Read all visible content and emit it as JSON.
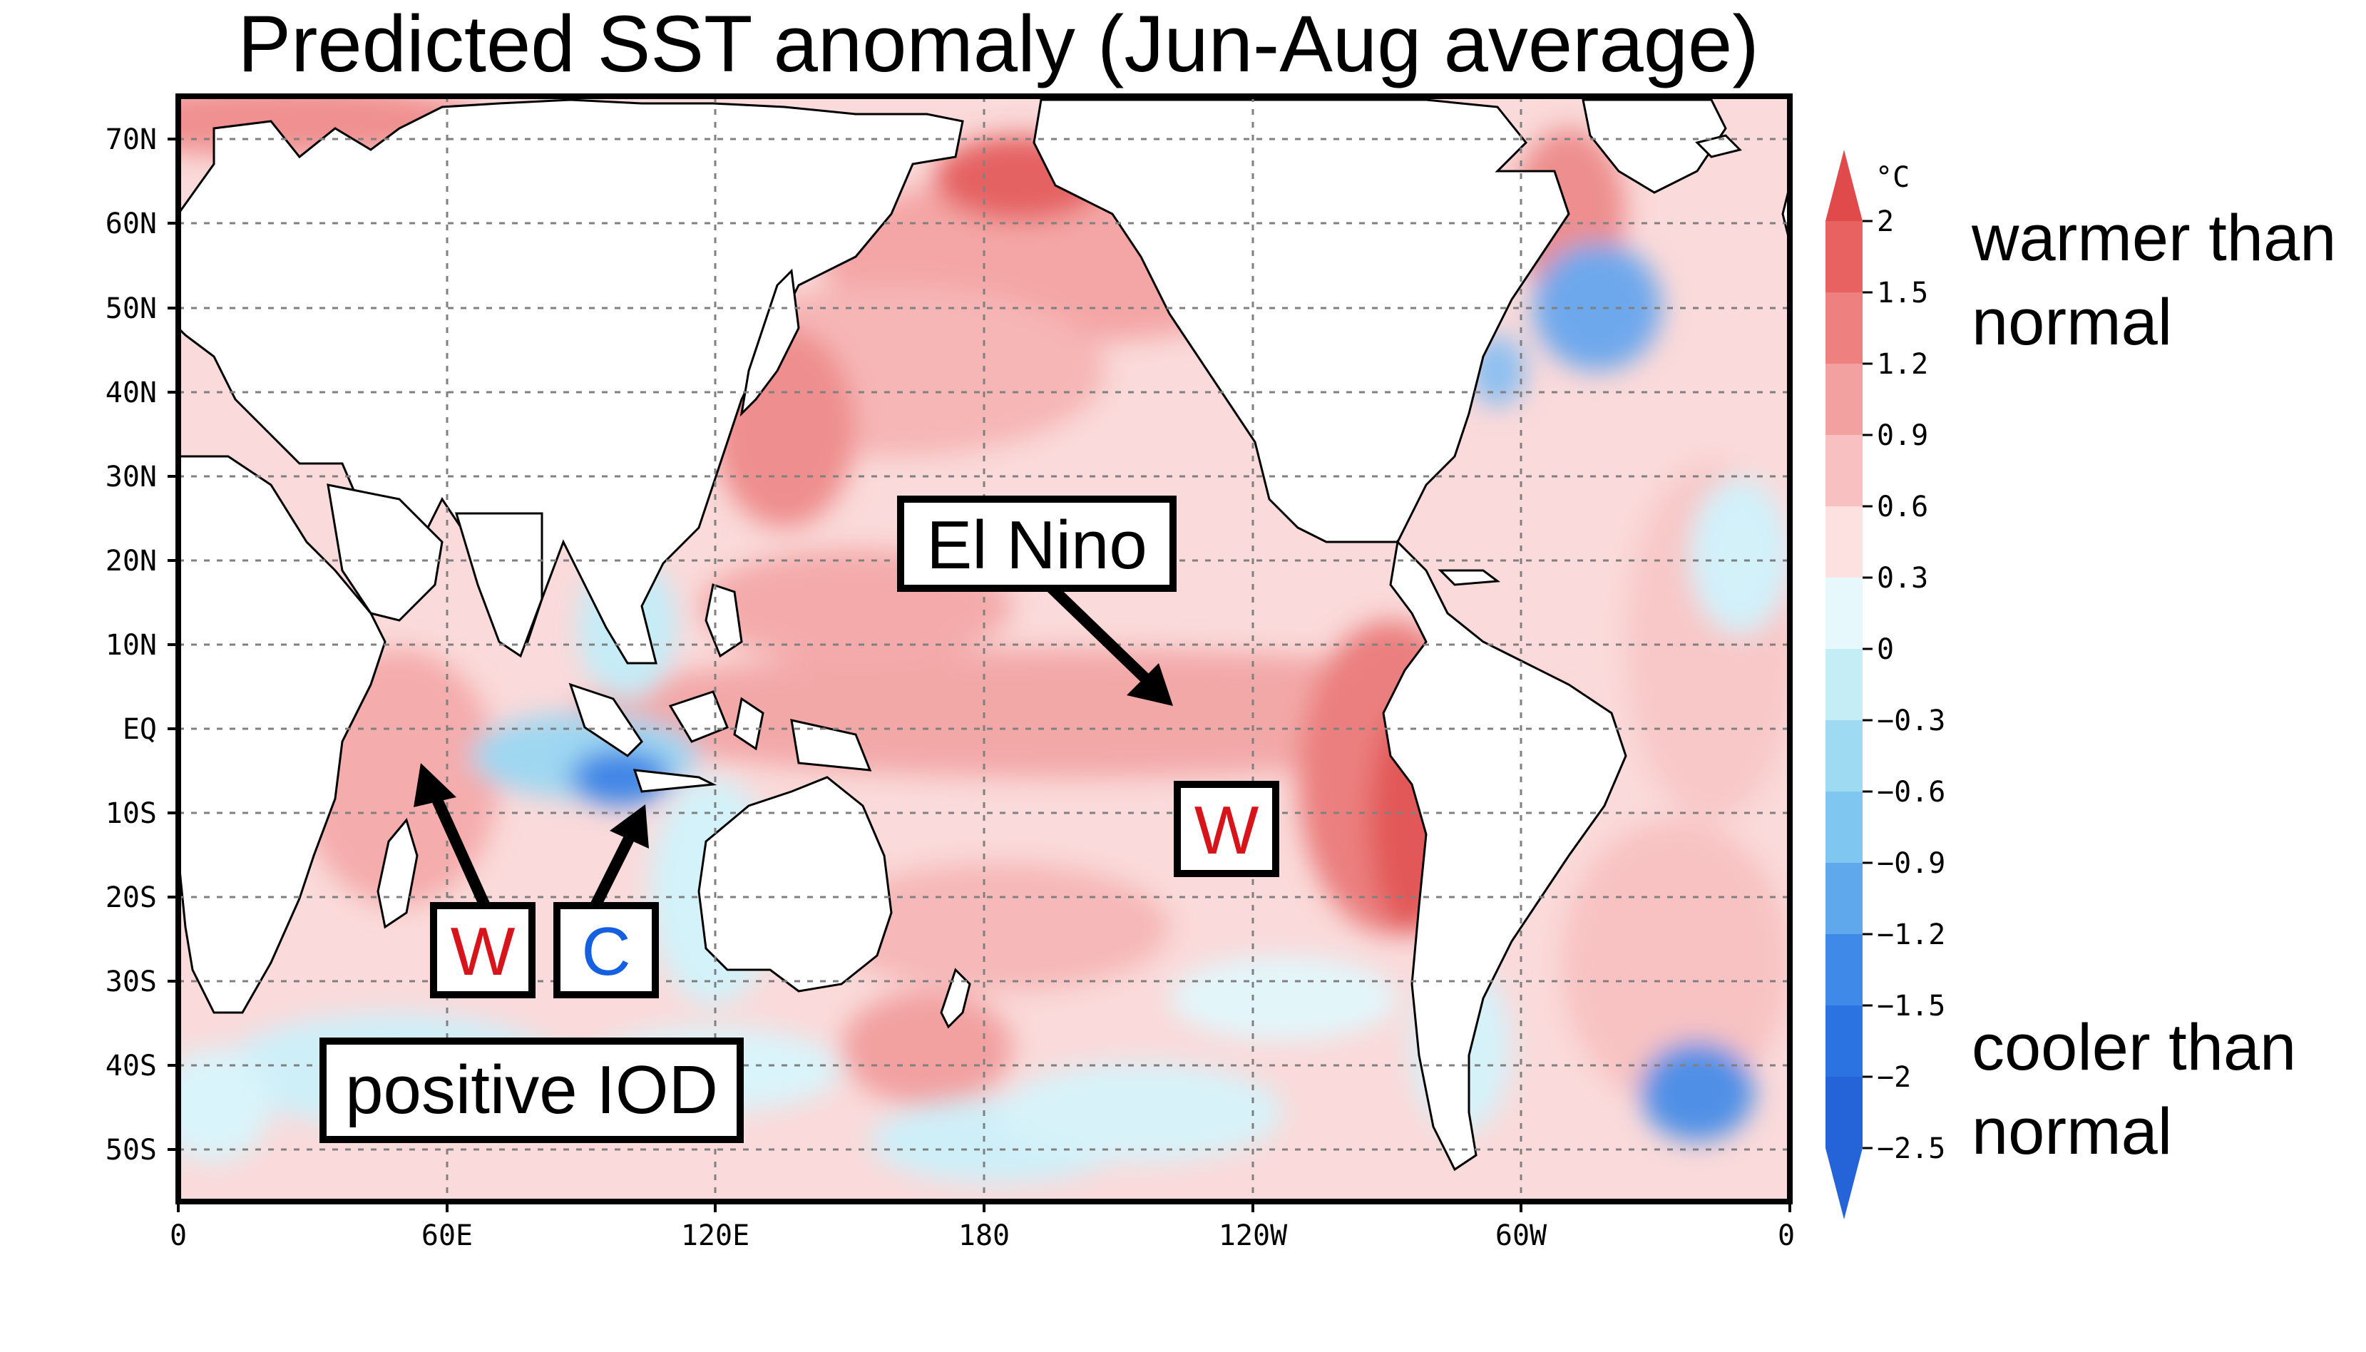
{
  "title": "Predicted SST anomaly (Jun-Aug average)",
  "map": {
    "lat_labels": [
      "70N",
      "60N",
      "50N",
      "40N",
      "30N",
      "20N",
      "10N",
      "EQ",
      "10S",
      "20S",
      "30S",
      "40S",
      "50S"
    ],
    "lon_labels": [
      "0",
      "60E",
      "120E",
      "180",
      "120W",
      "60W",
      "0"
    ]
  },
  "colorbar": {
    "unit": "°C",
    "levels": [
      "2",
      "1.5",
      "1.2",
      "0.9",
      "0.6",
      "0.3",
      "0",
      "−0.3",
      "−0.6",
      "−0.9",
      "−1.2",
      "−1.5",
      "−2",
      "−2.5"
    ],
    "colors": [
      "#e04a4a",
      "#e86262",
      "#ee8080",
      "#f3a0a0",
      "#f8c0c0",
      "#fde0e0",
      "#e6f8fb",
      "#c4edf6",
      "#9edaf2",
      "#7fc6f0",
      "#5fa8ec",
      "#3f8ae8",
      "#2a73e0",
      "#2563d8"
    ],
    "warm_label": "warmer than normal",
    "cool_label": "cooler than normal"
  },
  "annotations": {
    "el_nino": "El Nino",
    "positive_iod": "positive IOD",
    "w_pacific": "W",
    "w_indian": "W",
    "c_indian": "C"
  },
  "colors": {
    "warm_letter": "#d7141a",
    "cool_letter": "#1560e0",
    "land": "#ffffff",
    "ocean_warm": "#fbd3d3",
    "ocean_cool": "#d4f1f8"
  }
}
